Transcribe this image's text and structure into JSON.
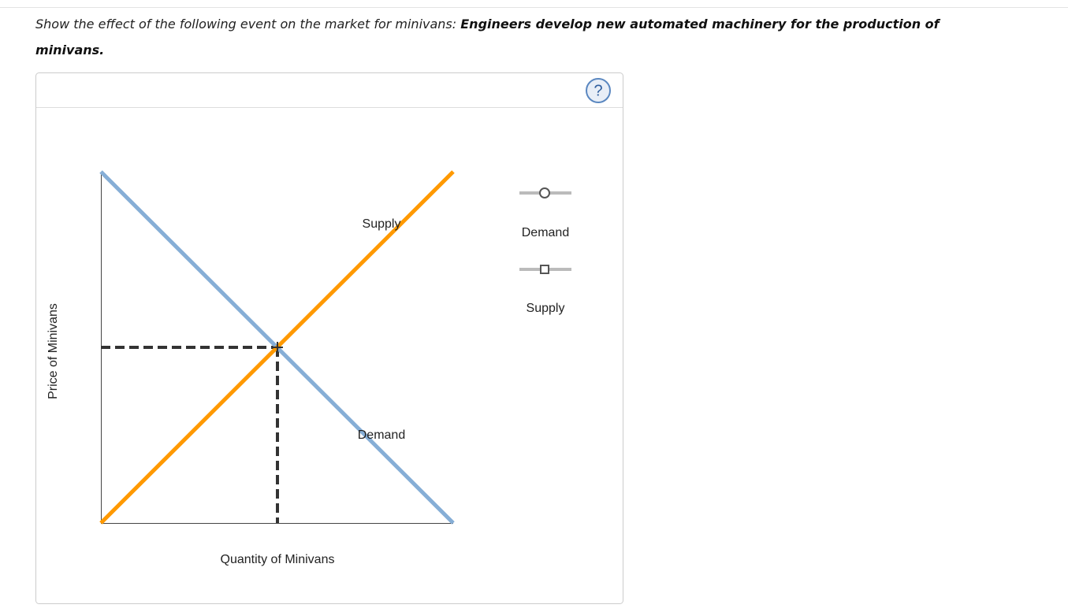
{
  "question": {
    "prompt": "Show the effect of the following event on the market for minivans:",
    "event": "Engineers develop new automated machinery for the production of minivans."
  },
  "graph": {
    "help": "?",
    "y_axis_label": "Price of Minivans",
    "x_axis_label": "Quantity of Minivans",
    "curve_labels": [
      "Supply",
      "Demand"
    ]
  },
  "tools": [
    {
      "label": "Demand"
    },
    {
      "label": "Supply"
    }
  ]
}
